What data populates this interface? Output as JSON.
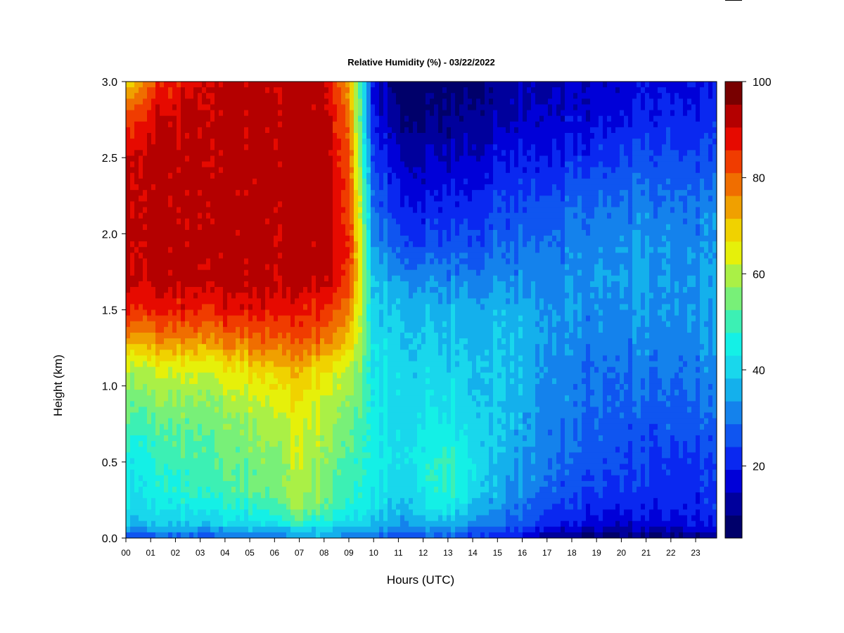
{
  "chart_data": {
    "type": "heatmap",
    "title": "Relative Humidity (%) - 03/22/2022",
    "xlabel": "Hours (UTC)",
    "ylabel": "Height (km)",
    "xlim": [
      0,
      23.85
    ],
    "ylim": [
      0,
      3
    ],
    "x_ticks": [
      0,
      1,
      2,
      3,
      4,
      5,
      6,
      7,
      8,
      9,
      10,
      11,
      12,
      13,
      14,
      15,
      16,
      17,
      18,
      19,
      20,
      21,
      22,
      23
    ],
    "x_tick_labels": [
      "00",
      "01",
      "02",
      "03",
      "04",
      "05",
      "06",
      "07",
      "08",
      "09",
      "10",
      "11",
      "12",
      "13",
      "14",
      "15",
      "16",
      "17",
      "18",
      "19",
      "20",
      "21",
      "22",
      "23"
    ],
    "y_ticks": [
      0,
      0.5,
      1.0,
      1.5,
      2.0,
      2.5,
      3.0
    ],
    "y_tick_labels": [
      "0.0",
      "0.5",
      "1.0",
      "1.5",
      "2.0",
      "2.5",
      "3.0"
    ],
    "colorbar": {
      "range": [
        5,
        100
      ],
      "ticks": [
        20,
        40,
        60,
        80,
        100
      ],
      "tick_labels": [
        "20",
        "40",
        "60",
        "80",
        "100"
      ],
      "levels": [
        5,
        10,
        15,
        20,
        25,
        30,
        35,
        40,
        45,
        50,
        55,
        60,
        65,
        70,
        75,
        80,
        85,
        90,
        95,
        100
      ],
      "colors": [
        "#00006a",
        "#00009c",
        "#0000d8",
        "#0a28f0",
        "#0f55f0",
        "#1482ec",
        "#14b0ec",
        "#19d7ec",
        "#14f0e6",
        "#3cf0b4",
        "#78f078",
        "#aaf046",
        "#e6f00a",
        "#f0d200",
        "#f0a000",
        "#f06e00",
        "#f03c00",
        "#e60a00",
        "#b40000",
        "#780000"
      ]
    },
    "height_levels_km": [
      0.0,
      0.05,
      0.1,
      0.2,
      0.3,
      0.5,
      0.7,
      0.9,
      1.1,
      1.3,
      1.5,
      1.7,
      1.9,
      2.2,
      2.5,
      2.8,
      3.0
    ],
    "hours": [
      0,
      1,
      2,
      3,
      4,
      5,
      6,
      7,
      8,
      9,
      9.5,
      10,
      11,
      12,
      13,
      14,
      15,
      16,
      17,
      18,
      19,
      20,
      21,
      22,
      23,
      23.85
    ],
    "rh_by_height": [
      [
        27,
        28,
        28,
        28,
        29,
        30,
        31,
        35,
        37,
        33,
        31,
        30,
        26,
        28,
        26,
        24,
        22,
        18,
        12,
        10,
        8,
        8,
        8,
        8,
        10,
        10
      ],
      [
        34,
        36,
        36,
        36,
        36,
        37,
        38,
        40,
        40,
        38,
        37,
        35,
        32,
        33,
        32,
        29,
        26,
        22,
        18,
        15,
        14,
        13,
        14,
        14,
        16,
        16
      ],
      [
        40,
        42,
        42,
        42,
        43,
        44,
        46,
        52,
        48,
        44,
        42,
        40,
        36,
        38,
        38,
        35,
        31,
        27,
        23,
        20,
        19,
        18,
        18,
        18,
        20,
        20
      ],
      [
        44,
        46,
        46,
        47,
        49,
        50,
        54,
        60,
        56,
        50,
        47,
        44,
        40,
        44,
        46,
        40,
        34,
        30,
        26,
        23,
        22,
        22,
        21,
        21,
        22,
        22
      ],
      [
        46,
        48,
        50,
        52,
        53,
        55,
        58,
        63,
        58,
        52,
        48,
        46,
        42,
        46,
        50,
        44,
        36,
        33,
        30,
        27,
        25,
        24,
        23,
        22,
        23,
        23
      ],
      [
        48,
        50,
        52,
        55,
        56,
        57,
        60,
        64,
        60,
        55,
        50,
        47,
        44,
        48,
        52,
        46,
        38,
        35,
        32,
        29,
        27,
        26,
        25,
        24,
        24,
        24
      ],
      [
        52,
        54,
        56,
        57,
        58,
        60,
        64,
        66,
        62,
        58,
        52,
        47,
        44,
        46,
        46,
        44,
        40,
        36,
        33,
        31,
        29,
        28,
        27,
        27,
        27,
        27
      ],
      [
        58,
        60,
        60,
        61,
        62,
        64,
        68,
        70,
        65,
        62,
        55,
        47,
        44,
        44,
        44,
        42,
        40,
        37,
        34,
        32,
        30,
        30,
        29,
        29,
        30,
        30
      ],
      [
        64,
        66,
        66,
        67,
        68,
        70,
        74,
        75,
        70,
        66,
        56,
        45,
        43,
        42,
        42,
        41,
        40,
        38,
        35,
        32,
        31,
        31,
        31,
        31,
        32,
        32
      ],
      [
        78,
        80,
        80,
        81,
        82,
        83,
        86,
        85,
        82,
        76,
        60,
        44,
        42,
        41,
        40,
        40,
        39,
        38,
        36,
        33,
        32,
        33,
        33,
        33,
        34,
        34
      ],
      [
        92,
        92,
        92,
        92,
        93,
        93,
        94,
        92,
        90,
        84,
        62,
        42,
        40,
        39,
        38,
        38,
        38,
        37,
        36,
        35,
        34,
        34,
        35,
        34,
        35,
        35
      ],
      [
        98,
        98,
        98,
        98,
        98,
        98,
        98,
        98,
        97,
        90,
        64,
        40,
        36,
        34,
        33,
        33,
        33,
        33,
        33,
        34,
        35,
        36,
        36,
        35,
        35,
        35
      ],
      [
        98,
        98,
        98,
        98,
        98,
        98,
        98,
        98,
        98,
        92,
        64,
        36,
        28,
        26,
        27,
        28,
        29,
        30,
        32,
        33,
        34,
        35,
        35,
        34,
        34,
        34
      ],
      [
        98,
        98,
        98,
        98,
        98,
        98,
        98,
        98,
        98,
        90,
        60,
        30,
        22,
        20,
        21,
        22,
        24,
        25,
        27,
        29,
        30,
        31,
        32,
        31,
        31,
        31
      ],
      [
        96,
        98,
        98,
        98,
        98,
        98,
        98,
        98,
        98,
        88,
        55,
        24,
        16,
        14,
        15,
        16,
        18,
        20,
        21,
        22,
        24,
        25,
        26,
        26,
        26,
        26
      ],
      [
        86,
        94,
        96,
        98,
        98,
        98,
        98,
        98,
        98,
        84,
        50,
        20,
        10,
        9,
        10,
        11,
        13,
        15,
        16,
        17,
        18,
        19,
        21,
        21,
        21,
        21
      ],
      [
        72,
        86,
        92,
        96,
        98,
        98,
        98,
        98,
        96,
        80,
        48,
        18,
        8,
        7,
        8,
        9,
        11,
        13,
        14,
        15,
        16,
        17,
        19,
        19,
        19,
        19
      ]
    ]
  }
}
